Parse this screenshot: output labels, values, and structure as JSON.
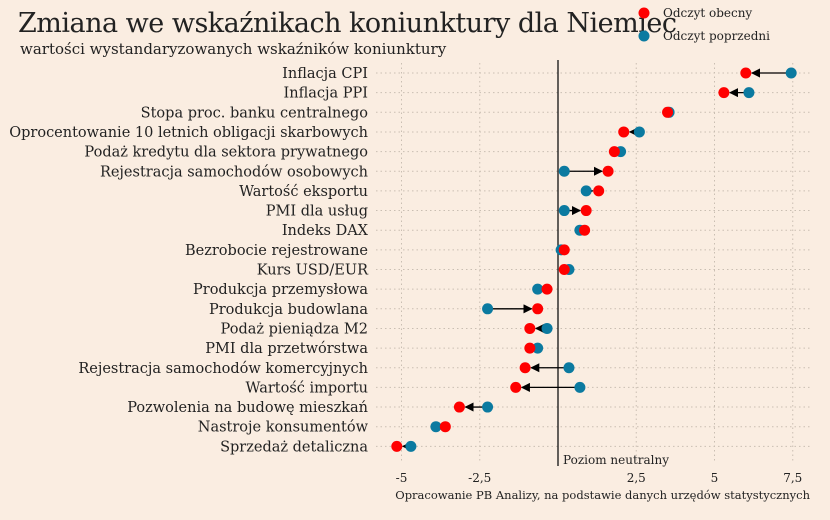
{
  "chart_data": {
    "type": "scatter",
    "title": "Zmiana we wskaźnikach koniunktury dla Niemiec",
    "subtitle": "wartości wystandaryzowanych wskaźników koniunktury",
    "source": "Opracowanie PB Analizy, na podstawie danych urzędów statystycznych",
    "annotation": "Poziom neutralny",
    "xlim": [
      -5.5,
      8
    ],
    "xticks": [
      -5,
      -2.5,
      0,
      2.5,
      5,
      7.5
    ],
    "xtick_labels": [
      "-5",
      "-2,5",
      "0",
      "2,5",
      "5",
      "7,5"
    ],
    "grid": true,
    "legend_placement": "top-right",
    "categories": [
      "Inflacja CPI",
      "Inflacja PPI",
      "Stopa proc. banku centralnego",
      "Oprocentowanie 10 letnich obligacji skarbowych",
      "Podaż kredytu dla sektora prywatnego",
      "Rejestracja samochodów osobowych",
      "Wartość eksportu",
      "PMI dla usług",
      "Indeks DAX",
      "Bezrobocie rejestrowane",
      "Kurs USD/EUR",
      "Produkcja przemysłowa",
      "Produkcja budowlana",
      "Podaż pieniądza M2",
      "PMI dla przetwórstwa",
      "Rejestracja samochodów komercyjnych",
      "Wartość importu",
      "Pozwolenia na budowę mieszkań",
      "Nastroje konsumentów",
      "Sprzedaż detaliczna"
    ],
    "series": [
      {
        "name": "Odczyt obecny",
        "color": "#ff0000",
        "values": [
          6.0,
          5.3,
          3.5,
          2.1,
          1.8,
          1.6,
          1.3,
          0.9,
          0.85,
          0.2,
          0.2,
          -0.35,
          -0.65,
          -0.9,
          -0.9,
          -1.05,
          -1.35,
          -3.15,
          -3.6,
          -5.15
        ]
      },
      {
        "name": "Odczyt poprzedni",
        "color": "#0b7aa0",
        "values": [
          7.45,
          6.1,
          3.55,
          2.6,
          2.0,
          0.2,
          0.9,
          0.2,
          0.7,
          0.1,
          0.35,
          -0.65,
          -2.25,
          -0.35,
          -0.65,
          0.35,
          0.7,
          -2.25,
          -3.9,
          -4.7
        ]
      }
    ]
  }
}
